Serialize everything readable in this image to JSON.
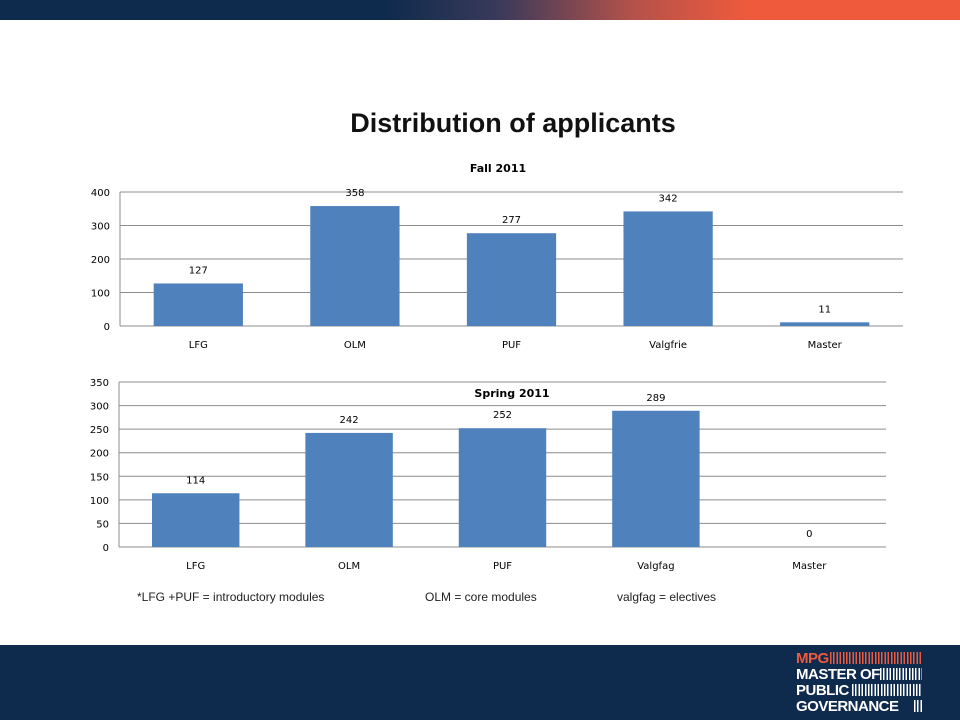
{
  "slide": {
    "title": "Distribution of applicants",
    "footnotes": [
      "*LFG +PUF = introductory modules",
      "OLM = core modules",
      "valgfag = electives"
    ]
  },
  "logo": {
    "lines": [
      "MPG",
      "MASTER OF",
      "PUBLIC",
      "GOVERNANCE"
    ],
    "accent_color": "#ef5a3c"
  },
  "colors": {
    "bar": "#4f81bd",
    "band": "#0e2a4d",
    "accent": "#ef5a3c"
  },
  "chart_data": [
    {
      "type": "bar",
      "title": "Fall 2011",
      "categories": [
        "LFG",
        "OLM",
        "PUF",
        "Valgfrie",
        "Master"
      ],
      "values": [
        127,
        358,
        277,
        342,
        11
      ],
      "ylim": [
        0,
        400
      ],
      "yticks": [
        0,
        100,
        200,
        300,
        400
      ],
      "xlabel": "",
      "ylabel": "",
      "grid": true,
      "data_labels": true
    },
    {
      "type": "bar",
      "title": "Spring 2011",
      "categories": [
        "LFG",
        "OLM",
        "PUF",
        "Valgfag",
        "Master"
      ],
      "values": [
        114,
        242,
        252,
        289,
        0
      ],
      "ylim": [
        0,
        350
      ],
      "yticks": [
        0,
        50,
        100,
        150,
        200,
        250,
        300,
        350
      ],
      "xlabel": "",
      "ylabel": "",
      "grid": true,
      "data_labels": true
    }
  ]
}
